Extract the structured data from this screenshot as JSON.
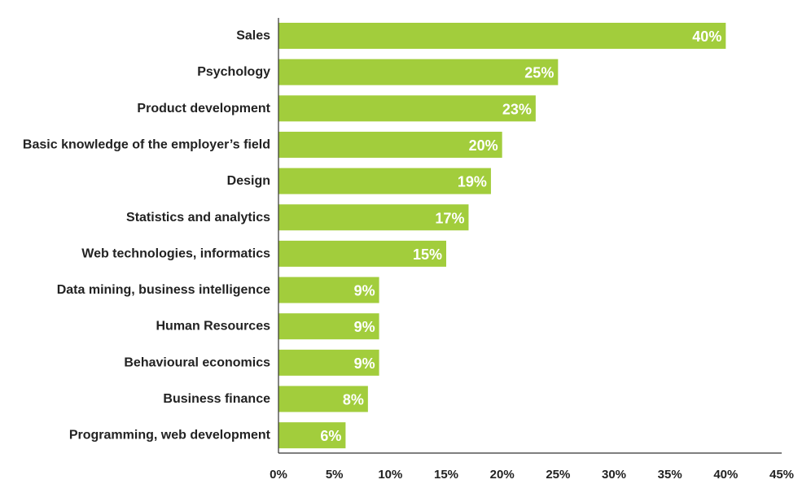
{
  "chart_data": {
    "type": "bar",
    "orientation": "horizontal",
    "categories": [
      "Sales",
      "Psychology",
      "Product development",
      "Basic knowledge of the employer’s field",
      "Design",
      "Statistics and analytics",
      "Web technologies, informatics",
      "Data mining, business intelligence",
      "Human Resources",
      "Behavioural economics",
      "Business finance",
      "Programming, web development"
    ],
    "values": [
      40,
      25,
      23,
      20,
      19,
      17,
      15,
      9,
      9,
      9,
      8,
      6
    ],
    "value_labels": [
      "40%",
      "25%",
      "23%",
      "20%",
      "19%",
      "17%",
      "15%",
      "9%",
      "9%",
      "9%",
      "8%",
      "6%"
    ],
    "xlim": [
      0,
      45
    ],
    "xticks": [
      0,
      5,
      10,
      15,
      20,
      25,
      30,
      35,
      40,
      45
    ],
    "xtick_labels": [
      "0%",
      "5%",
      "10%",
      "15%",
      "20%",
      "25%",
      "30%",
      "35%",
      "40%",
      "45%"
    ],
    "title": "",
    "xlabel": "",
    "ylabel": "",
    "grid": false,
    "bar_color": "#a2cd3c",
    "value_label_color": "#ffffff",
    "axis_color": "#333333"
  }
}
